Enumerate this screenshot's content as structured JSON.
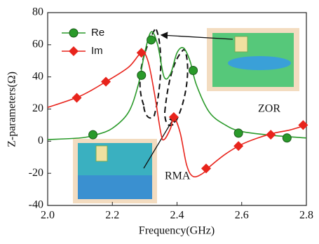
{
  "chart_data": {
    "type": "line",
    "xlabel": "Frequency(GHz)",
    "ylabel": "Z-parameters(Ω)",
    "xlim": [
      2.0,
      2.8
    ],
    "xticks": [
      {
        "value": 2.0,
        "label": "2.0"
      },
      2.2,
      2.4,
      2.6,
      2.8
    ],
    "ylim": [
      -40,
      80
    ],
    "yticks": [
      -40,
      -20,
      0,
      20,
      40,
      60,
      80
    ],
    "legend": "upper left",
    "annotations": [
      "ZOR",
      "RMA"
    ],
    "series": [
      {
        "name": "Re",
        "color": "#2a9a2a",
        "marker": "circle",
        "x": [
          2.0,
          2.1,
          2.15,
          2.2,
          2.25,
          2.28,
          2.3,
          2.32,
          2.34,
          2.36,
          2.38,
          2.4,
          2.42,
          2.44,
          2.46,
          2.5,
          2.55,
          2.6,
          2.7,
          2.8
        ],
        "values": [
          1,
          2,
          4,
          8,
          18,
          35,
          55,
          68,
          60,
          40,
          42,
          55,
          58,
          50,
          35,
          18,
          10,
          6,
          3.5,
          2
        ],
        "marker_x": [
          2.14,
          2.29,
          2.32,
          2.45,
          2.59,
          2.74
        ],
        "marker_values": [
          4,
          41,
          63,
          44,
          5,
          2
        ]
      },
      {
        "name": "Im",
        "color": "#e8241c",
        "marker": "diamond",
        "x": [
          2.0,
          2.1,
          2.18,
          2.25,
          2.29,
          2.31,
          2.33,
          2.35,
          2.36,
          2.38,
          2.39,
          2.41,
          2.43,
          2.45,
          2.48,
          2.5,
          2.55,
          2.6,
          2.65,
          2.7,
          2.75,
          2.8
        ],
        "values": [
          21,
          28,
          37,
          46,
          55,
          50,
          30,
          5,
          1,
          8,
          15,
          5,
          -15,
          -22,
          -20,
          -16,
          -8,
          -2,
          2,
          5,
          7,
          10
        ],
        "marker_x": [
          2.09,
          2.18,
          2.29,
          2.39,
          2.49,
          2.59,
          2.69,
          2.79
        ],
        "marker_values": [
          27,
          37,
          55,
          15,
          -17,
          -3,
          4,
          10
        ]
      }
    ]
  }
}
